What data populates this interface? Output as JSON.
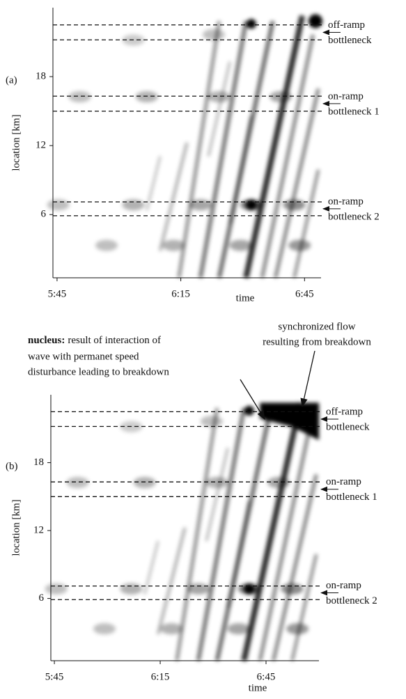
{
  "chart_data": [
    {
      "type": "heatmap",
      "panel_label": "(a)",
      "x_label": "time",
      "y_label": "location [km]",
      "xlim": [
        344,
        409
      ],
      "xticks": [
        {
          "value": 345,
          "label": "5:45"
        },
        {
          "value": 375,
          "label": "6:15"
        },
        {
          "value": 405,
          "label": "6:45"
        }
      ],
      "ylim": [
        0.5,
        24
      ],
      "yticks": [
        6,
        12,
        18
      ],
      "bottlenecks": [
        {
          "lines": [
            "off-ramp",
            "bottleneck"
          ],
          "bounds": [
            21.2,
            22.5
          ]
        },
        {
          "lines": [
            "on-ramp",
            "bottleneck 1"
          ],
          "bounds": [
            15.0,
            16.3
          ]
        },
        {
          "lines": [
            "on-ramp",
            "bottleneck 2"
          ],
          "bounds": [
            5.9,
            7.1
          ]
        }
      ]
    },
    {
      "type": "heatmap",
      "panel_label": "(b)",
      "x_label": "time",
      "y_label": "location [km]",
      "xlim": [
        344,
        420
      ],
      "xticks": [
        {
          "value": 345,
          "label": "5:45"
        },
        {
          "value": 375,
          "label": "6:15"
        },
        {
          "value": 405,
          "label": "6:45"
        }
      ],
      "ylim": [
        0.5,
        24
      ],
      "yticks": [
        6,
        12,
        18
      ],
      "bottlenecks": [
        {
          "lines": [
            "off-ramp",
            "bottleneck"
          ],
          "bounds": [
            21.2,
            22.5
          ]
        },
        {
          "lines": [
            "on-ramp",
            "bottleneck 1"
          ],
          "bounds": [
            15.0,
            16.3
          ]
        },
        {
          "lines": [
            "on-ramp",
            "bottleneck 2"
          ],
          "bounds": [
            5.9,
            7.1
          ]
        }
      ],
      "annotations": [
        {
          "bold": "nucleus:",
          "lines": [
            "result of interaction of",
            "wave with permanet speed",
            "disturbance leading to breakdown"
          ]
        },
        {
          "lines": [
            "synchronized flow",
            "resulting from breakdown"
          ]
        }
      ]
    }
  ]
}
